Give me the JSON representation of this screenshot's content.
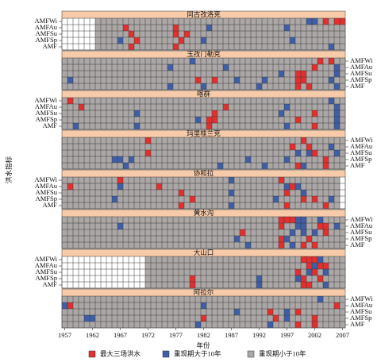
{
  "chart_data": {
    "type": "heatmap",
    "y_label": "洪水指标",
    "x_label": "年份",
    "xlim": [
      1957,
      2007
    ],
    "xticks": [
      1957,
      1962,
      1967,
      1972,
      1977,
      1982,
      1987,
      1992,
      1997,
      2002,
      2007
    ],
    "legend": [
      {
        "name": "最大三场洪水",
        "color": "#e2302e"
      },
      {
        "name": "重现期大于10年",
        "color": "#3f5ea6"
      },
      {
        "name": "重现期小于10年",
        "color": "#aba7a6"
      }
    ],
    "panels": [
      {
        "title": "同古孜洛克",
        "years": [
          1963,
          2007
        ],
        "label_side": "left",
        "rows": [
          {
            "name": "AMFWi",
            "red": [
              2004,
              2006,
              2007
            ],
            "blue": [
              2001,
              2002
            ]
          },
          {
            "name": "AMFAu",
            "red": [
              1968,
              1977
            ],
            "blue": [
              1983,
              1997
            ]
          },
          {
            "name": "AMFSu",
            "red": [
              1969,
              1977,
              1979
            ],
            "blue": []
          },
          {
            "name": "AMFSp",
            "red": [
              1970,
              1978
            ],
            "blue": [
              1967,
              1982,
              1998
            ]
          },
          {
            "name": "AMF",
            "red": [
              1969,
              1977
            ],
            "blue": [
              2005
            ]
          }
        ]
      },
      {
        "title": "玉孜门勒克",
        "years": [
          1957,
          2007
        ],
        "label_side": "right",
        "rows": [
          {
            "name": "AMFWi",
            "red": [
              2003,
              2005
            ],
            "blue": [
              1980
            ]
          },
          {
            "name": "AMFAu",
            "red": [
              2002
            ],
            "blue": [
              1976,
              1986,
              2006
            ]
          },
          {
            "name": "AMFSu",
            "red": [
              1999,
              2000
            ],
            "blue": [
              1996,
              2006
            ]
          },
          {
            "name": "AMFSp",
            "red": [
              1981,
              1984,
              1999,
              2000
            ],
            "blue": [
              1958,
              1988,
              1993,
              2005
            ]
          },
          {
            "name": "AMF",
            "red": [
              1999,
              2001
            ],
            "blue": [
              1976,
              1982,
              1992,
              2006
            ]
          }
        ]
      },
      {
        "title": "喀群",
        "years": [
          1957,
          2007
        ],
        "label_side": "left",
        "rows": [
          {
            "name": "AMFWi",
            "red": [
              1958
            ],
            "blue": [
              2005
            ]
          },
          {
            "name": "AMFAu",
            "red": [
              1960,
              1986
            ],
            "blue": [
              1997,
              2006
            ]
          },
          {
            "name": "AMFSu",
            "red": [
              1984,
              2002
            ],
            "blue": [
              1970,
              1996,
              2006
            ]
          },
          {
            "name": "AMFSp",
            "red": [
              1983,
              1984,
              1999
            ],
            "blue": [
              1981,
              2006
            ]
          },
          {
            "name": "AMF",
            "red": [
              1983,
              2002
            ],
            "blue": [
              1959,
              1970,
              1997,
              2006
            ]
          }
        ]
      },
      {
        "title": "玛里桂兰克",
        "years": [
          1957,
          2007
        ],
        "label_side": "right",
        "rows": [
          {
            "name": "AMFWi",
            "red": [
              1972,
              2000
            ],
            "blue": []
          },
          {
            "name": "AMFAu",
            "red": [
              1998,
              2001
            ],
            "blue": [
              2005
            ]
          },
          {
            "name": "AMFSu",
            "red": [
              1972,
              2002
            ],
            "blue": [
              1999,
              2001,
              2006
            ]
          },
          {
            "name": "AMFSp",
            "red": [
              2004
            ],
            "blue": [
              1966,
              1967,
              1969,
              1990,
              1997
            ]
          },
          {
            "name": "AMF",
            "red": [
              1999,
              2004
            ],
            "blue": [
              1968,
              1985,
              1993,
              2000
            ]
          }
        ]
      },
      {
        "title": "协和拉",
        "years": [
          1957,
          2006
        ],
        "label_side": "left",
        "rows": [
          {
            "name": "AMFWi",
            "red": [
              1967,
              1996
            ],
            "blue": [
              1987
            ]
          },
          {
            "name": "AMFAu",
            "red": [
              1958,
              1974,
              1998
            ],
            "blue": [
              1967,
              1997,
              1999
            ]
          },
          {
            "name": "AMFSu",
            "red": [
              1978,
              1997
            ],
            "blue": [
              1987,
              2000
            ]
          },
          {
            "name": "AMFSp",
            "red": [
              1980,
              2000,
              2002
            ],
            "blue": [
              1966,
              1995,
              2005
            ]
          },
          {
            "name": "AMF",
            "red": [
              1978,
              1997,
              2004
            ],
            "blue": [
              1987
            ]
          }
        ]
      },
      {
        "title": "黄水沟",
        "years": [
          1957,
          2007
        ],
        "label_side": "right",
        "rows": [
          {
            "name": "AMFWi",
            "red": [
              1996,
              1997,
              1998
            ],
            "blue": [
              1999,
              2000,
              2003
            ]
          },
          {
            "name": "AMFAu",
            "red": [
              1996,
              2003,
              2004
            ],
            "blue": [
              1967,
              1999,
              2000,
              2006
            ]
          },
          {
            "name": "AMFSu",
            "red": [
              1989,
              2004
            ],
            "blue": [
              1998,
              2000,
              2002
            ]
          },
          {
            "name": "AMFSp",
            "red": [
              1996,
              2001
            ],
            "blue": [
              1988,
              1997
            ]
          },
          {
            "name": "AMF",
            "red": [
              1996,
              2000,
              2002
            ],
            "blue": [
              1990,
              1998
            ]
          }
        ]
      },
      {
        "title": "大山口",
        "years": [
          1972,
          2007
        ],
        "label_side": "left",
        "rows": [
          {
            "name": "AMFWi",
            "red": [
              2000,
              2001,
              2002
            ],
            "blue": [
              2003
            ]
          },
          {
            "name": "AMFAu",
            "red": [
              2001,
              2003,
              2004
            ],
            "blue": [
              2002
            ]
          },
          {
            "name": "AMFSu",
            "red": [
              1999,
              2002
            ],
            "blue": [
              2001,
              2004
            ]
          },
          {
            "name": "AMFSp",
            "red": [
              1980,
              2000,
              2003
            ],
            "blue": [
              1992,
              1999
            ]
          },
          {
            "name": "AMF",
            "red": [
              1980,
              2000,
              2001
            ],
            "blue": [
              1992,
              2004
            ]
          }
        ]
      },
      {
        "title": "阿拉尔",
        "years": [
          1957,
          2007
        ],
        "label_side": "right",
        "rows": [
          {
            "name": "AMFWi",
            "red": [],
            "blue": [
              2003
            ]
          },
          {
            "name": "AMFAu",
            "red": [
              1958,
              2006
            ],
            "blue": [
              1957,
              1982
            ]
          },
          {
            "name": "AMFSu",
            "red": [
              1994,
              1999
            ],
            "blue": [
              1988,
              1997
            ]
          },
          {
            "name": "AMFSp",
            "red": [
              1982,
              1995,
              2002
            ],
            "blue": [
              1961,
              1962,
              1997
            ]
          },
          {
            "name": "AMF",
            "red": [
              1999,
              2002
            ],
            "blue": [
              1981,
              1994
            ]
          }
        ]
      }
    ]
  }
}
